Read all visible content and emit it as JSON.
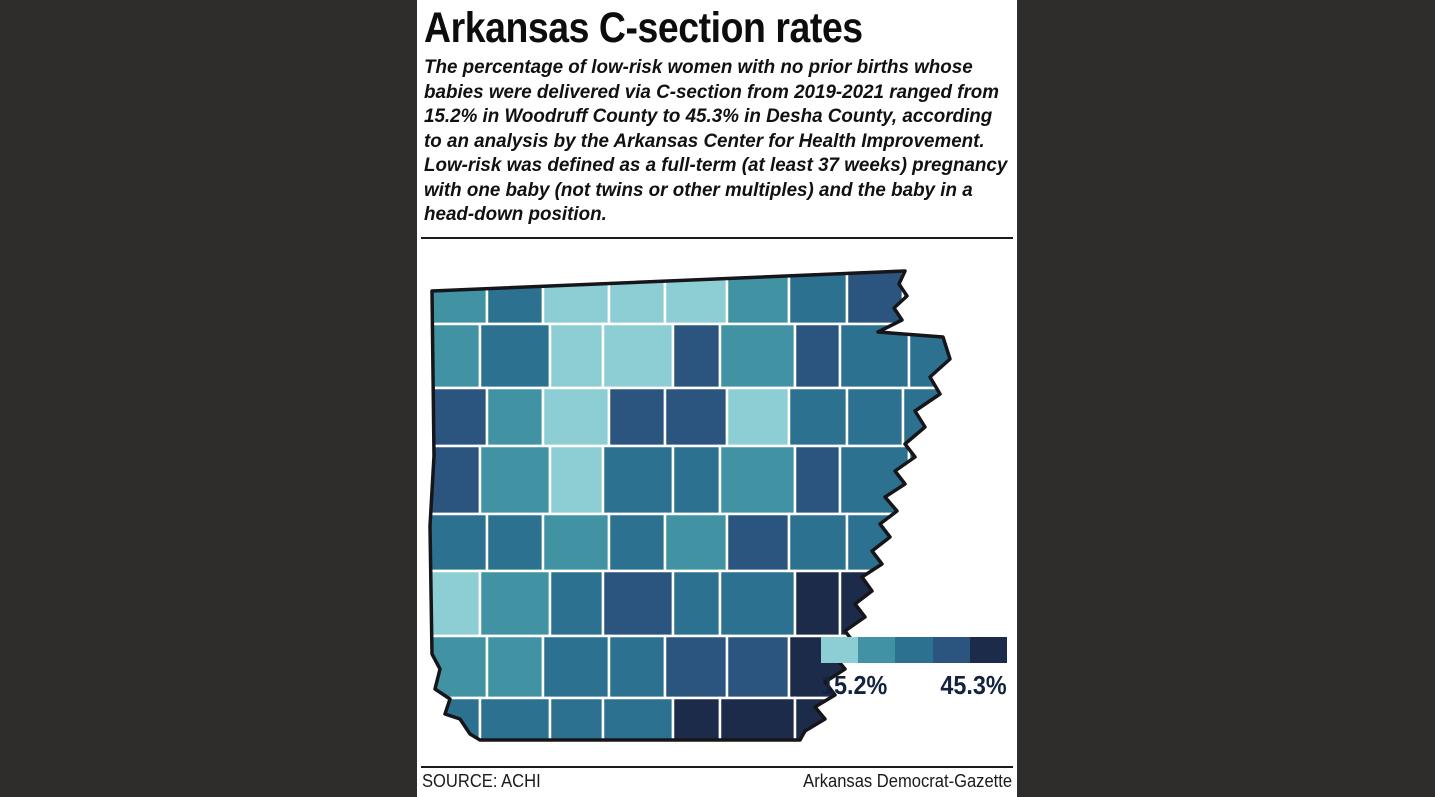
{
  "panel": {
    "title": "Arkansas C-section rates",
    "description_lines": [
      "The percentage of low-risk women with no prior births whose",
      "babies were delivered via C-section from 2019-2021 ranged from",
      "15.2% in Woodruff County to 45.3% in Desha County, according",
      "to an analysis by the Arkansas Center for Health Improvement.",
      "Low-risk was defined as a full-term (at least 37 weeks) pregnancy",
      "with one baby (not twins or other multiples) and the baby in a",
      "head-down position."
    ],
    "source": "SOURCE: ACHI",
    "credit": "Arkansas Democrat-Gazette"
  },
  "legend": {
    "min_label": "15.2%",
    "max_label": "45.3%",
    "colors": [
      "#8dced5",
      "#4193a3",
      "#2d7191",
      "#2b557e",
      "#1c2b4a"
    ]
  },
  "map": {
    "state": "Arkansas",
    "metric": "C-section rate of low-risk first births, 2019-2021",
    "min_value": "15.2%",
    "min_county": "Woodruff County",
    "max_value": "45.3%",
    "max_county": "Desha County",
    "palette": {
      "c1": "#8dced5",
      "c2": "#4193a3",
      "c3": "#2d7191",
      "c4": "#2b557e",
      "c5": "#1c2b4a"
    },
    "county_line_color": "#ffffff",
    "outline_color": "#16161a",
    "rows": [
      [
        "c2",
        "c3",
        "c1",
        "c1",
        "c1",
        "c2",
        "c3",
        "c4",
        "c4",
        "c3"
      ],
      [
        "c2",
        "c3",
        "c1",
        "c1",
        "c4",
        "c2",
        "c4",
        "c3",
        "c3",
        "c3"
      ],
      [
        "c4",
        "c2",
        "c1",
        "c4",
        "c4",
        "c1",
        "c3",
        "c3",
        "c3",
        "c3"
      ],
      [
        "c4",
        "c2",
        "c1",
        "c3",
        "c3",
        "c2",
        "c4",
        "c3",
        "c3",
        "c3"
      ],
      [
        "c3",
        "c3",
        "c2",
        "c3",
        "c2",
        "c4",
        "c3",
        "c3",
        "c3",
        "c3"
      ],
      [
        "c1",
        "c2",
        "c3",
        "c4",
        "c3",
        "c3",
        "c5",
        "c5",
        "c3",
        "c3"
      ],
      [
        "c2",
        "c2",
        "c3",
        "c3",
        "c4",
        "c4",
        "c5",
        "c5",
        "c3",
        "c3"
      ],
      [
        "c3",
        "c3",
        "c3",
        "c3",
        "c5",
        "c5",
        "c5",
        "c5",
        "c3",
        "c3"
      ]
    ]
  },
  "colors": {
    "background": "#2e2d2c",
    "panel": "#ffffff",
    "text": "#111111"
  }
}
